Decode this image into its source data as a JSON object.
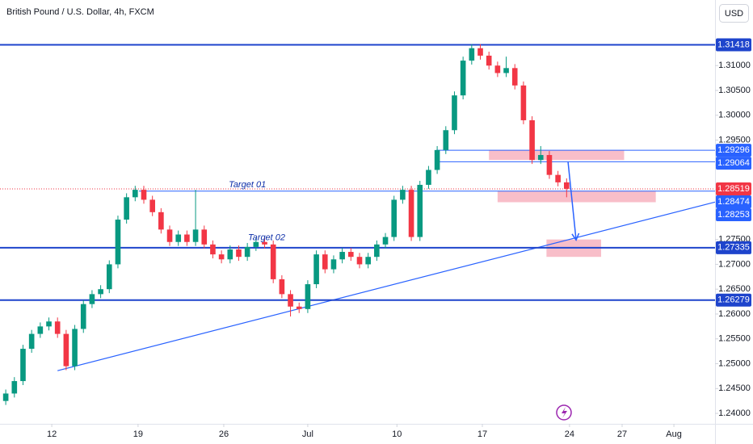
{
  "chart_data": {
    "type": "candlestick",
    "title": "British Pound / U.S. Dollar, 4h, FXCM",
    "currency": "USD",
    "x": [
      2,
      5,
      8,
      11,
      14,
      17,
      20,
      23,
      26,
      29,
      32,
      35,
      38,
      41,
      44,
      47,
      50,
      53,
      56,
      59,
      62,
      65,
      68,
      71,
      74,
      77,
      80,
      83,
      86,
      89,
      92,
      95,
      98,
      101,
      104,
      107,
      110,
      113,
      116,
      119,
      122,
      125,
      128,
      131,
      134,
      137,
      140,
      143,
      146,
      149,
      152,
      155,
      158,
      161,
      164,
      167,
      170,
      173,
      176,
      179,
      182,
      185,
      188,
      191,
      194,
      197
    ],
    "open": [
      1.2425,
      1.244,
      1.2465,
      1.253,
      1.256,
      1.2575,
      1.2585,
      1.256,
      1.2495,
      1.257,
      1.262,
      1.264,
      1.265,
      1.27,
      1.279,
      1.2835,
      1.285,
      1.283,
      1.2805,
      1.277,
      1.2745,
      1.276,
      1.2745,
      1.277,
      1.274,
      1.272,
      1.271,
      1.273,
      1.2715,
      1.2735,
      1.2745,
      1.274,
      1.267,
      1.264,
      1.2615,
      1.261,
      1.266,
      1.272,
      1.269,
      1.271,
      1.2725,
      1.2715,
      1.27,
      1.2715,
      1.274,
      1.2755,
      1.283,
      1.285,
      1.2755,
      1.286,
      1.289,
      1.293,
      1.297,
      1.304,
      1.311,
      1.3135,
      1.312,
      1.31,
      1.3085,
      1.3095,
      1.306,
      1.299,
      1.291,
      1.292,
      1.288,
      1.2865
    ],
    "high": [
      1.2448,
      1.2473,
      1.2538,
      1.2568,
      1.2583,
      1.2593,
      1.2593,
      1.2568,
      1.2578,
      1.2628,
      1.2648,
      1.2658,
      1.2708,
      1.2798,
      1.2843,
      1.2858,
      1.2858,
      1.2838,
      1.2813,
      1.2778,
      1.2768,
      1.2768,
      1.285,
      1.2778,
      1.2748,
      1.2728,
      1.2738,
      1.2738,
      1.2743,
      1.2753,
      1.2753,
      1.2748,
      1.2678,
      1.2648,
      1.2623,
      1.2668,
      1.2728,
      1.2728,
      1.2718,
      1.2733,
      1.2733,
      1.2723,
      1.2723,
      1.2748,
      1.2763,
      1.2838,
      1.2858,
      1.2858,
      1.2868,
      1.2898,
      1.2938,
      1.2978,
      1.3048,
      1.3118,
      1.3143,
      1.3143,
      1.3128,
      1.3108,
      1.3118,
      1.3103,
      1.3068,
      1.2998,
      1.2938,
      1.2928,
      1.2888,
      1.2873
    ],
    "low": [
      1.2417,
      1.2432,
      1.2457,
      1.2522,
      1.2552,
      1.2567,
      1.2552,
      1.2487,
      1.2487,
      1.2562,
      1.2612,
      1.2632,
      1.2642,
      1.2692,
      1.2782,
      1.2827,
      1.2822,
      1.2797,
      1.2762,
      1.2737,
      1.2737,
      1.2737,
      1.2737,
      1.2732,
      1.2712,
      1.2702,
      1.2702,
      1.2707,
      1.2707,
      1.2727,
      1.2732,
      1.2662,
      1.2632,
      1.2595,
      1.2602,
      1.2602,
      1.2652,
      1.2682,
      1.2682,
      1.2702,
      1.2707,
      1.2692,
      1.2692,
      1.2707,
      1.2732,
      1.2747,
      1.2822,
      1.2747,
      1.2747,
      1.2852,
      1.2882,
      1.2922,
      1.2962,
      1.3032,
      1.3102,
      1.3112,
      1.3092,
      1.3077,
      1.3077,
      1.3052,
      1.2982,
      1.2902,
      1.2902,
      1.2872,
      1.2857,
      1.2835
    ],
    "close": [
      1.244,
      1.2465,
      1.253,
      1.256,
      1.2575,
      1.2585,
      1.256,
      1.2495,
      1.257,
      1.262,
      1.264,
      1.265,
      1.27,
      1.279,
      1.2835,
      1.285,
      1.283,
      1.2805,
      1.277,
      1.2745,
      1.276,
      1.2745,
      1.277,
      1.274,
      1.272,
      1.271,
      1.273,
      1.2715,
      1.2735,
      1.2745,
      1.274,
      1.267,
      1.264,
      1.2615,
      1.261,
      1.266,
      1.272,
      1.269,
      1.271,
      1.2725,
      1.2715,
      1.27,
      1.2715,
      1.274,
      1.2755,
      1.283,
      1.285,
      1.2755,
      1.286,
      1.289,
      1.293,
      1.297,
      1.304,
      1.311,
      1.3135,
      1.312,
      1.31,
      1.3085,
      1.3095,
      1.306,
      1.299,
      1.291,
      1.292,
      1.288,
      1.2865,
      1.2852
    ],
    "up_color": "#089981",
    "down_color": "#f23645",
    "xlim": [
      0,
      248.6
    ],
    "xticks": [
      {
        "value": 18,
        "label": "12"
      },
      {
        "value": 48,
        "label": "19"
      },
      {
        "value": 77.8,
        "label": "26"
      },
      {
        "value": 107,
        "label": "Jul"
      },
      {
        "value": 138,
        "label": "10"
      },
      {
        "value": 167.7,
        "label": "17"
      },
      {
        "value": 198,
        "label": "24"
      },
      {
        "value": 216.3,
        "label": "27"
      },
      {
        "value": 234.3,
        "label": "Aug"
      }
    ],
    "ylim": [
      1.2379,
      1.3232
    ],
    "yticks": [
      {
        "value": 1.24,
        "label": "1.24000"
      },
      {
        "value": 1.245,
        "label": "1.24500"
      },
      {
        "value": 1.25,
        "label": "1.25000"
      },
      {
        "value": 1.255,
        "label": "1.25500"
      },
      {
        "value": 1.26,
        "label": "1.26000"
      },
      {
        "value": 1.265,
        "label": "1.26500"
      },
      {
        "value": 1.27,
        "label": "1.27000"
      },
      {
        "value": 1.275,
        "label": "1.27500"
      },
      {
        "value": 1.28,
        "label": "1.28000"
      },
      {
        "value": 1.285,
        "label": "1.28500"
      },
      {
        "value": 1.29,
        "label": "1.29000"
      },
      {
        "value": 1.295,
        "label": "1.29500"
      },
      {
        "value": 1.3,
        "label": "1.30000"
      },
      {
        "value": 1.305,
        "label": "1.30500"
      },
      {
        "value": 1.31,
        "label": "1.31000"
      }
    ],
    "grid": false,
    "current_price": 1.28519,
    "current_color": "#f23645",
    "levels": [
      {
        "value": 1.31418,
        "from": 0,
        "color": "#1e44cc",
        "width": 2
      },
      {
        "value": 1.29296,
        "from": 151.7,
        "color": "#2962ff",
        "width": 1
      },
      {
        "value": 1.29064,
        "from": 151.7,
        "color": "#2962ff",
        "width": 1
      },
      {
        "value": 1.28474,
        "from": 48.3,
        "color": "#2962ff",
        "width": 1
      },
      {
        "value": 1.27335,
        "from": 0,
        "color": "#1e44cc",
        "width": 2
      },
      {
        "value": 1.26279,
        "from": 0,
        "color": "#1e44cc",
        "width": 2
      }
    ],
    "trendline": {
      "x": [
        20,
        248.6
      ],
      "y": [
        1.2486,
        1.28253
      ],
      "color": "#2962ff"
    },
    "zones": [
      {
        "x": [
          170,
          217
        ],
        "y": [
          1.291,
          1.293
        ]
      },
      {
        "x": [
          173,
          228
        ],
        "y": [
          1.2825,
          1.2848
        ]
      },
      {
        "x": [
          190,
          209
        ],
        "y": [
          1.2715,
          1.275
        ]
      }
    ],
    "zone_color": "#f7b3c0",
    "arrow": {
      "x": [
        197.5,
        200.3
      ],
      "y": [
        1.2906,
        1.2749
      ],
      "color": "#2962ff"
    },
    "annotations": [
      {
        "text": "Target 01",
        "x": 86,
        "y": 1.286,
        "color": "#0d2ea8"
      },
      {
        "text": "Target 02",
        "x": 92.7,
        "y": 1.2753,
        "color": "#0d2ea8"
      }
    ]
  }
}
